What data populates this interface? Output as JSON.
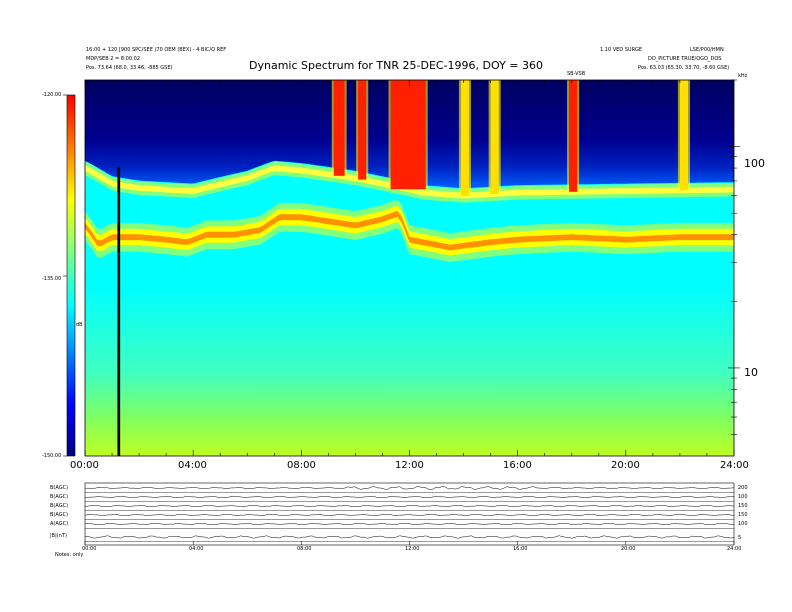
{
  "header": {
    "title": "Dynamic Spectrum for TNR 25-DEC-1996, DOY = 360",
    "left_line1": "16:00 + 120 [900 SPC/SEE (70 OEM (BEX) - 4 BIC/Q REF",
    "left_line2": "MDP/SEB 2 = 8:00:02",
    "left_line3": "Pos.    73.64 (68.0, 33.46, -885 GSE)",
    "right_line1": "1.10 VED SURGE",
    "right_line2": "LSE/P00/HMN",
    "right_line3": "DO_PICTURE TRUE/OGO_DOS",
    "right_line4": "Pos.    63.03 (65.30, 33.70, -8.60 GSE)",
    "marker_label": "SB-VSB"
  },
  "colorbar": {
    "tick_labels": [
      "-120.00",
      "-135.00",
      "-150.00"
    ],
    "unit_label": "dB",
    "colors": [
      "#000080",
      "#0000ff",
      "#0080ff",
      "#00ffff",
      "#80ff80",
      "#ffff00",
      "#ff8000",
      "#ff0000"
    ]
  },
  "time_axis": {
    "tick_labels": [
      "00:00",
      "04:00",
      "08:00",
      "12:00",
      "16:00",
      "20:00",
      "24:00"
    ]
  },
  "freq_axis": {
    "tick_labels": [
      "100",
      "10"
    ],
    "unit_label": "kHz"
  },
  "panels": {
    "left_labels": [
      "B(AGC)",
      "B(AGC)",
      "B(AGC)",
      "B(AGC)",
      "A(AGC)",
      "|B|(nT)"
    ],
    "right_labels": [
      "200",
      "100",
      "150",
      "150",
      "100",
      "5"
    ],
    "bottom_left": "Notes:   only",
    "time_labels": [
      "00:00",
      "04:00",
      "08:00",
      "12:00",
      "16:00",
      "20:00",
      "24:00"
    ]
  },
  "chart_data": {
    "type": "heatmap",
    "title": "Dynamic Spectrum for TNR 25-DEC-1996, DOY = 360",
    "xlabel": "",
    "ylabel": "kHz",
    "x_range_hours": [
      0,
      24
    ],
    "x_tick_labels": [
      "00:00",
      "04:00",
      "08:00",
      "12:00",
      "16:00",
      "20:00",
      "24:00"
    ],
    "y_scale": "log",
    "y_range_khz": [
      4,
      200
    ],
    "y_tick_values_khz": [
      100,
      10
    ],
    "colorbar_range_db": [
      -150,
      -120
    ],
    "colorbar_ticks_db": [
      -120,
      -135,
      -150
    ],
    "plasma_line_center_khz": [
      [
        0.0,
        44
      ],
      [
        0.5,
        36
      ],
      [
        1.0,
        39
      ],
      [
        2.0,
        39
      ],
      [
        3.0,
        38
      ],
      [
        3.8,
        37
      ],
      [
        4.5,
        40
      ],
      [
        5.5,
        40
      ],
      [
        6.5,
        42
      ],
      [
        7.2,
        48
      ],
      [
        8.0,
        48
      ],
      [
        9.0,
        46
      ],
      [
        10.0,
        44
      ],
      [
        11.0,
        47
      ],
      [
        11.6,
        50
      ],
      [
        12.0,
        38
      ],
      [
        12.5,
        37
      ],
      [
        13.5,
        35
      ],
      [
        15.0,
        37
      ],
      [
        16.0,
        38
      ],
      [
        18.0,
        39
      ],
      [
        20.0,
        38
      ],
      [
        22.0,
        39
      ],
      [
        24.0,
        39
      ]
    ],
    "upper_band_center_khz": [
      [
        0.0,
        80
      ],
      [
        1.0,
        68
      ],
      [
        2.0,
        65
      ],
      [
        4.0,
        63
      ],
      [
        6.0,
        72
      ],
      [
        7.0,
        80
      ],
      [
        8.0,
        78
      ],
      [
        9.0,
        75
      ],
      [
        10.0,
        72
      ],
      [
        11.5,
        66
      ],
      [
        12.5,
        62
      ],
      [
        14.0,
        60
      ],
      [
        16.0,
        62
      ],
      [
        20.0,
        63
      ],
      [
        24.0,
        64
      ]
    ],
    "bursts": [
      {
        "start": 9.2,
        "end": 9.6,
        "level": "red"
      },
      {
        "start": 10.1,
        "end": 10.4,
        "level": "red"
      },
      {
        "start": 11.3,
        "end": 12.6,
        "level": "red"
      },
      {
        "start": 13.9,
        "end": 14.2,
        "level": "yellow"
      },
      {
        "start": 15.0,
        "end": 15.3,
        "level": "yellow"
      },
      {
        "start": 17.9,
        "end": 18.2,
        "level": "red"
      },
      {
        "start": 22.0,
        "end": 22.3,
        "level": "yellow"
      }
    ],
    "data_gap_hours": [
      1.2,
      1.3
    ]
  }
}
